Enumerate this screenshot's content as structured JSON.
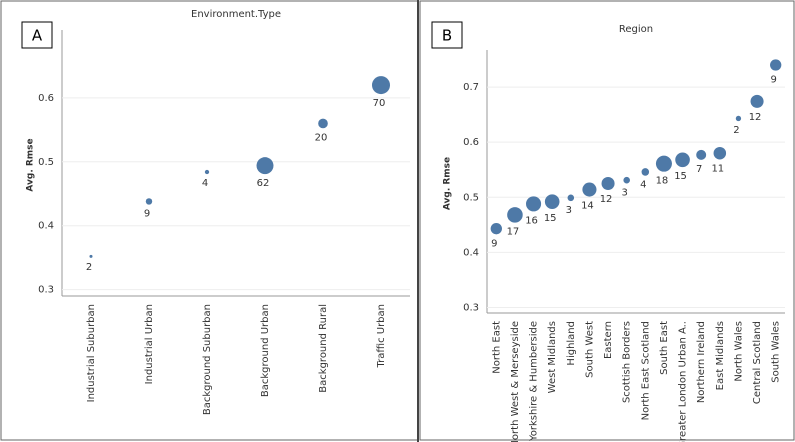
{
  "chart_data": [
    {
      "type": "bubble",
      "label": "A",
      "title": "Environment.Type",
      "y_label": "Avg. Rmse",
      "categories": [
        "Industrial Suburban",
        "Industrial Urban",
        "Background Suburban",
        "Background Urban",
        "Background Rural",
        "Traffic Urban"
      ],
      "values": [
        0.352,
        0.438,
        0.484,
        0.494,
        0.56,
        0.62
      ],
      "sizes": [
        2,
        9,
        4,
        62,
        20,
        70
      ],
      "color": "#4e79a7",
      "ylim": [
        0.29,
        0.7
      ],
      "yticks": [
        0.3,
        0.4,
        0.5,
        0.6
      ],
      "grid": true
    },
    {
      "type": "bubble",
      "label": "B",
      "title": "Region",
      "y_label": "Avg. Rmse",
      "categories": [
        "North East",
        "North West & Merseyside",
        "Yorkshire & Humberside",
        "West Midlands",
        "Highland",
        "South West",
        "Eastern",
        "Scottish Borders",
        "North East Scotland",
        "South East",
        "Greater London Urban A..",
        "Northern Ireland",
        "East Midlands",
        "North Wales",
        "Central Scotland",
        "South Wales"
      ],
      "values": [
        0.443,
        0.468,
        0.488,
        0.492,
        0.499,
        0.514,
        0.525,
        0.531,
        0.546,
        0.561,
        0.568,
        0.577,
        0.58,
        0.643,
        0.674,
        0.74
      ],
      "sizes": [
        9,
        17,
        16,
        15,
        3,
        14,
        12,
        3,
        4,
        18,
        15,
        7,
        11,
        2,
        12,
        9
      ],
      "color": "#4e79a7",
      "ylim": [
        0.29,
        0.76
      ],
      "yticks": [
        0.3,
        0.4,
        0.5,
        0.6,
        0.7
      ],
      "grid": true
    }
  ]
}
